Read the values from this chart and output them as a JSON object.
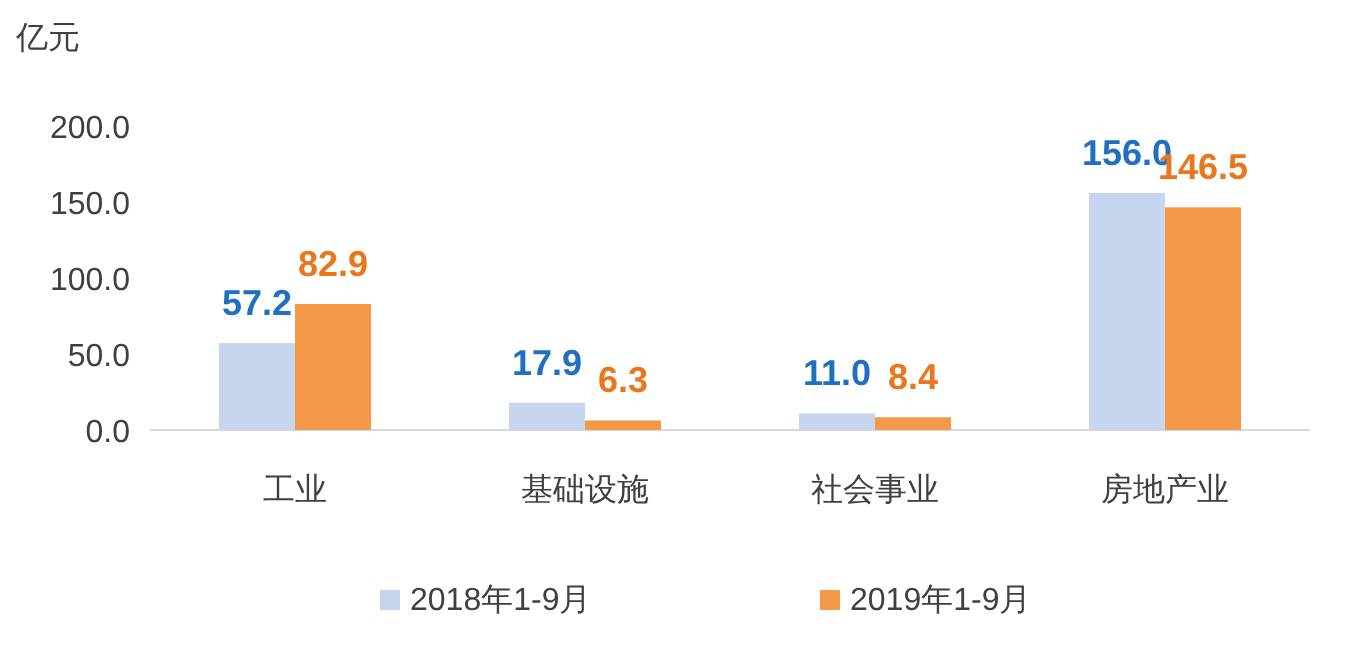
{
  "chart_data": {
    "type": "bar",
    "ylabel": "亿元",
    "categories": [
      "工业",
      "基础设施",
      "社会事业",
      "房地产业"
    ],
    "series": [
      {
        "name": "2018年1-9月",
        "color": "#c6d6ef",
        "values": [
          57.2,
          17.9,
          11.0,
          156.0
        ]
      },
      {
        "name": "2019年1-9月",
        "color": "#f4994a",
        "values": [
          82.9,
          6.3,
          8.4,
          146.5
        ]
      }
    ],
    "value_labels": [
      [
        "57.2",
        "17.9",
        "11.0",
        "156.0"
      ],
      [
        "82.9",
        "6.3",
        "8.4",
        "146.5"
      ]
    ],
    "ylim": [
      0,
      200
    ],
    "yticks": [
      {
        "value": 0,
        "label": "0.0"
      },
      {
        "value": 50,
        "label": "50.0"
      },
      {
        "value": 100,
        "label": "100.0"
      },
      {
        "value": 150,
        "label": "150.0"
      },
      {
        "value": 200,
        "label": "200.0"
      }
    ],
    "grid": false,
    "legend": "bottom"
  }
}
